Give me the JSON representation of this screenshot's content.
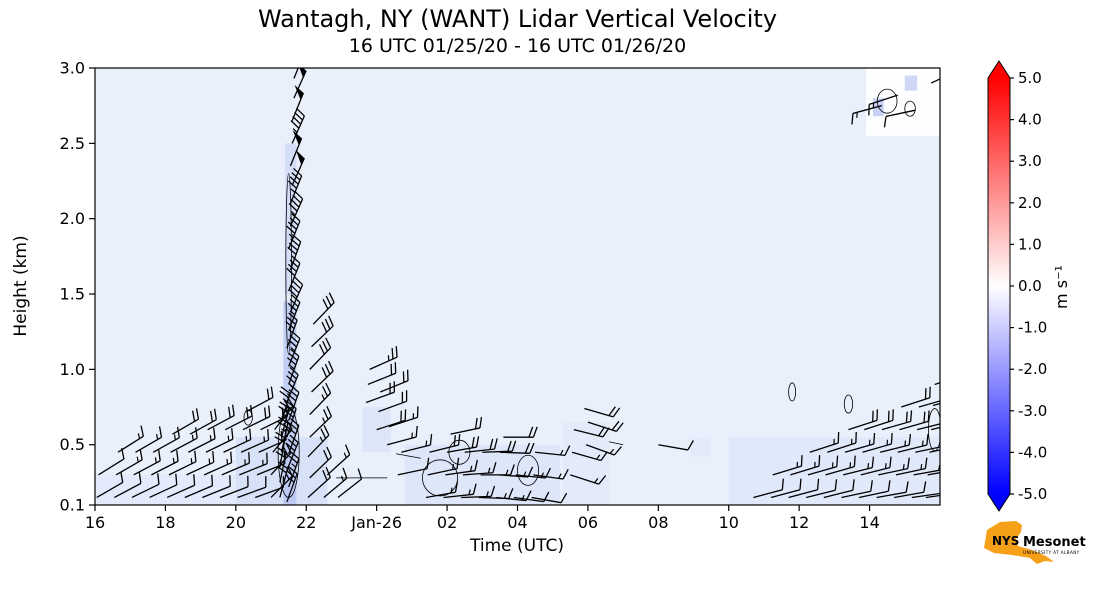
{
  "title": "Wantagh, NY (WANT) Lidar Vertical Velocity",
  "subtitle": "16 UTC 01/25/20 - 16 UTC 01/26/20",
  "chart_data": {
    "type": "heatmap",
    "title": "Wantagh, NY (WANT) Lidar Vertical Velocity",
    "subtitle": "16 UTC 01/25/20 - 16 UTC 01/26/20",
    "xlabel": "Time (UTC)",
    "ylabel": "Height (km)",
    "x_axis_hours_after_16utc": [
      0,
      24
    ],
    "ylim": [
      0.1,
      3.0
    ],
    "plot_bg": "#e9f0fb",
    "x_ticks": [
      {
        "t": 0,
        "label": "16"
      },
      {
        "t": 2,
        "label": "18"
      },
      {
        "t": 4,
        "label": "20"
      },
      {
        "t": 6,
        "label": "22"
      },
      {
        "t": 8,
        "label": "Jan-26"
      },
      {
        "t": 10,
        "label": "02"
      },
      {
        "t": 12,
        "label": "04"
      },
      {
        "t": 14,
        "label": "06"
      },
      {
        "t": 16,
        "label": "08"
      },
      {
        "t": 18,
        "label": "10"
      },
      {
        "t": 20,
        "label": "12"
      },
      {
        "t": 22,
        "label": "14"
      }
    ],
    "y_ticks": [
      {
        "h": 0.1,
        "label": "0.1"
      },
      {
        "h": 0.5,
        "label": "0.5"
      },
      {
        "h": 1.0,
        "label": "1.0"
      },
      {
        "h": 1.5,
        "label": "1.5"
      },
      {
        "h": 2.0,
        "label": "2.0"
      },
      {
        "h": 2.5,
        "label": "2.5"
      },
      {
        "h": 3.0,
        "label": "3.0"
      }
    ],
    "colorbar": {
      "label": "m s⁻¹",
      "min": -5.0,
      "max": 5.0,
      "ticks": [
        "5.0",
        "4.0",
        "3.0",
        "2.0",
        "1.0",
        "0.0",
        "-1.0",
        "-2.0",
        "-3.0",
        "-4.0",
        "-5.0"
      ],
      "color_max": "#ff0000",
      "color_mid": "#ffffff",
      "color_min": "#0000ff"
    },
    "shading": [
      [
        0.0,
        0.1,
        4.0,
        0.3,
        "#e0e9fb",
        0.8
      ],
      [
        4.0,
        0.1,
        6.6,
        0.55,
        "#ccd9f7",
        0.6
      ],
      [
        5.35,
        0.1,
        5.72,
        1.45,
        "#aebdf0",
        0.65
      ],
      [
        5.4,
        1.5,
        5.72,
        2.5,
        "#c5d0f5",
        0.55
      ],
      [
        7.6,
        0.45,
        8.4,
        0.75,
        "#d5dff8",
        0.6
      ],
      [
        8.8,
        0.1,
        13.2,
        0.5,
        "#d5dff8",
        0.55
      ],
      [
        13.3,
        0.1,
        14.6,
        0.65,
        "#dfe8fa",
        0.6
      ],
      [
        16.9,
        0.42,
        17.5,
        0.55,
        "#dfe8fa",
        0.7
      ],
      [
        18.0,
        0.1,
        24.0,
        0.55,
        "#dbe5fa",
        0.6
      ],
      [
        21.9,
        2.55,
        24.0,
        3.0,
        "#ffffff",
        0.9
      ],
      [
        22.1,
        2.68,
        22.4,
        2.8,
        "#b9c6f2",
        0.8
      ],
      [
        23.0,
        2.85,
        23.35,
        2.95,
        "#c3cef5",
        0.8
      ]
    ],
    "contour_ellipses": [
      [
        4.35,
        0.68,
        0.12,
        0.05
      ],
      [
        5.5,
        0.45,
        0.3,
        0.3
      ],
      [
        5.5,
        1.7,
        0.08,
        0.6
      ],
      [
        9.8,
        0.28,
        0.5,
        0.12
      ],
      [
        10.35,
        0.45,
        0.3,
        0.08
      ],
      [
        12.3,
        0.33,
        0.3,
        0.1
      ],
      [
        19.8,
        0.85,
        0.1,
        0.06
      ],
      [
        21.4,
        0.77,
        0.12,
        0.06
      ],
      [
        23.85,
        0.6,
        0.18,
        0.14
      ],
      [
        22.5,
        2.78,
        0.28,
        0.08
      ],
      [
        23.15,
        2.73,
        0.15,
        0.05
      ]
    ],
    "contour_segments": [
      [
        6.85,
        0.28,
        8.3,
        0.28
      ],
      [
        8.55,
        0.44,
        9.25,
        0.41
      ],
      [
        14.6,
        0.52,
        15.0,
        0.5
      ]
    ],
    "barb_format": "[hours_after_16UTC, height_km, staff_angle_deg_ccw_from_east, speed_knots]",
    "barbs": [
      [
        0.05,
        0.15,
        30,
        10
      ],
      [
        0.1,
        0.3,
        32,
        10
      ],
      [
        0.55,
        0.15,
        28,
        10
      ],
      [
        0.6,
        0.3,
        30,
        15
      ],
      [
        0.65,
        0.45,
        32,
        15
      ],
      [
        1.05,
        0.15,
        26,
        10
      ],
      [
        1.1,
        0.3,
        28,
        15
      ],
      [
        1.15,
        0.45,
        30,
        15
      ],
      [
        1.55,
        0.15,
        25,
        10
      ],
      [
        1.6,
        0.3,
        27,
        15
      ],
      [
        1.65,
        0.45,
        29,
        15
      ],
      [
        2.05,
        0.15,
        24,
        10
      ],
      [
        2.1,
        0.3,
        26,
        15
      ],
      [
        2.15,
        0.45,
        28,
        15
      ],
      [
        2.2,
        0.57,
        30,
        20
      ],
      [
        2.55,
        0.15,
        23,
        10
      ],
      [
        2.6,
        0.3,
        25,
        15
      ],
      [
        2.65,
        0.45,
        27,
        15
      ],
      [
        2.7,
        0.57,
        29,
        20
      ],
      [
        3.05,
        0.15,
        22,
        10
      ],
      [
        3.1,
        0.3,
        24,
        15
      ],
      [
        3.15,
        0.45,
        26,
        15
      ],
      [
        3.2,
        0.6,
        28,
        20
      ],
      [
        3.55,
        0.15,
        21,
        10
      ],
      [
        3.6,
        0.3,
        23,
        15
      ],
      [
        3.65,
        0.45,
        25,
        15
      ],
      [
        3.7,
        0.6,
        27,
        20
      ],
      [
        4.05,
        0.15,
        20,
        10
      ],
      [
        4.1,
        0.3,
        22,
        15
      ],
      [
        4.15,
        0.45,
        24,
        15
      ],
      [
        4.2,
        0.6,
        26,
        20
      ],
      [
        4.3,
        0.72,
        28,
        20
      ],
      [
        4.55,
        0.15,
        20,
        10
      ],
      [
        4.6,
        0.3,
        22,
        15
      ],
      [
        4.65,
        0.45,
        24,
        20
      ],
      [
        4.7,
        0.6,
        26,
        20
      ],
      [
        5.0,
        0.15,
        45,
        15
      ],
      [
        5.0,
        0.3,
        48,
        20
      ],
      [
        5.05,
        0.45,
        50,
        20
      ],
      [
        5.1,
        0.6,
        52,
        20
      ],
      [
        5.25,
        0.15,
        75,
        20
      ],
      [
        5.25,
        0.25,
        78,
        20
      ],
      [
        5.25,
        0.35,
        80,
        20
      ],
      [
        5.3,
        0.45,
        78,
        25
      ],
      [
        5.3,
        0.55,
        76,
        25
      ],
      [
        5.3,
        0.65,
        74,
        25
      ],
      [
        5.45,
        0.12,
        70,
        25
      ],
      [
        5.5,
        0.22,
        70,
        25
      ],
      [
        5.45,
        0.33,
        68,
        30
      ],
      [
        5.5,
        0.44,
        70,
        30
      ],
      [
        5.45,
        0.55,
        72,
        30
      ],
      [
        5.5,
        0.66,
        70,
        30
      ],
      [
        5.45,
        0.78,
        68,
        35
      ],
      [
        5.5,
        0.9,
        70,
        35
      ],
      [
        5.5,
        1.02,
        68,
        35
      ],
      [
        5.45,
        1.14,
        70,
        35
      ],
      [
        5.5,
        1.26,
        68,
        35
      ],
      [
        5.55,
        1.38,
        66,
        40
      ],
      [
        5.5,
        1.52,
        68,
        40
      ],
      [
        5.55,
        1.66,
        70,
        40
      ],
      [
        5.5,
        1.8,
        68,
        45
      ],
      [
        5.55,
        1.95,
        66,
        45
      ],
      [
        5.55,
        2.1,
        68,
        45
      ],
      [
        5.6,
        2.22,
        66,
        50
      ],
      [
        5.55,
        2.35,
        68,
        50
      ],
      [
        5.6,
        2.5,
        66,
        45
      ],
      [
        5.6,
        2.65,
        68,
        50
      ],
      [
        5.65,
        2.8,
        66,
        50
      ],
      [
        5.65,
        2.93,
        68,
        50
      ],
      [
        6.05,
        0.15,
        42,
        20
      ],
      [
        6.1,
        0.28,
        44,
        20
      ],
      [
        6.05,
        0.42,
        46,
        25
      ],
      [
        6.1,
        0.55,
        44,
        25
      ],
      [
        6.1,
        0.7,
        46,
        25
      ],
      [
        6.15,
        0.85,
        44,
        30
      ],
      [
        6.1,
        1.0,
        46,
        30
      ],
      [
        6.15,
        1.15,
        44,
        30
      ],
      [
        6.2,
        1.3,
        46,
        30
      ],
      [
        6.5,
        0.15,
        40,
        15
      ],
      [
        6.6,
        0.3,
        42,
        15
      ],
      [
        6.9,
        0.15,
        38,
        10
      ],
      [
        7.7,
        0.78,
        20,
        20
      ],
      [
        7.75,
        0.9,
        22,
        20
      ],
      [
        7.8,
        1.0,
        24,
        25
      ],
      [
        8.0,
        0.6,
        18,
        20
      ],
      [
        8.05,
        0.72,
        20,
        20
      ],
      [
        8.1,
        0.85,
        22,
        20
      ],
      [
        8.3,
        0.5,
        15,
        15
      ],
      [
        8.35,
        0.62,
        18,
        15
      ],
      [
        8.6,
        0.3,
        12,
        10
      ],
      [
        8.7,
        0.45,
        14,
        15
      ],
      [
        9.4,
        0.15,
        10,
        15
      ],
      [
        9.45,
        0.3,
        12,
        15
      ],
      [
        9.5,
        0.45,
        14,
        20
      ],
      [
        9.9,
        0.15,
        6,
        15
      ],
      [
        9.95,
        0.3,
        8,
        15
      ],
      [
        10.0,
        0.45,
        10,
        20
      ],
      [
        10.1,
        0.57,
        12,
        20
      ],
      [
        10.4,
        0.15,
        2,
        15
      ],
      [
        10.45,
        0.3,
        4,
        15
      ],
      [
        10.5,
        0.45,
        6,
        20
      ],
      [
        10.9,
        0.15,
        -2,
        15
      ],
      [
        10.95,
        0.3,
        0,
        15
      ],
      [
        11.0,
        0.45,
        2,
        20
      ],
      [
        11.4,
        0.15,
        -6,
        15
      ],
      [
        11.45,
        0.3,
        -4,
        15
      ],
      [
        11.5,
        0.45,
        -2,
        20
      ],
      [
        11.6,
        0.55,
        0,
        20
      ],
      [
        11.9,
        0.15,
        -8,
        10
      ],
      [
        11.95,
        0.3,
        -6,
        15
      ],
      [
        12.4,
        0.15,
        -10,
        10
      ],
      [
        12.45,
        0.3,
        -8,
        15
      ],
      [
        12.5,
        0.45,
        -6,
        15
      ],
      [
        13.5,
        0.3,
        -18,
        15
      ],
      [
        13.55,
        0.45,
        -16,
        15
      ],
      [
        13.6,
        0.6,
        -14,
        20
      ],
      [
        13.95,
        0.5,
        -20,
        15
      ],
      [
        14.0,
        0.65,
        -18,
        20
      ],
      [
        13.9,
        0.74,
        -16,
        20
      ],
      [
        16.0,
        0.5,
        -10,
        10
      ],
      [
        18.7,
        0.15,
        15,
        10
      ],
      [
        19.2,
        0.15,
        15,
        10
      ],
      [
        19.25,
        0.3,
        17,
        15
      ],
      [
        19.7,
        0.15,
        15,
        10
      ],
      [
        19.75,
        0.3,
        17,
        15
      ],
      [
        20.2,
        0.15,
        14,
        10
      ],
      [
        20.25,
        0.3,
        16,
        15
      ],
      [
        20.3,
        0.45,
        18,
        15
      ],
      [
        20.7,
        0.15,
        14,
        10
      ],
      [
        20.75,
        0.3,
        16,
        15
      ],
      [
        20.8,
        0.45,
        18,
        15
      ],
      [
        21.2,
        0.15,
        12,
        10
      ],
      [
        21.25,
        0.3,
        14,
        15
      ],
      [
        21.3,
        0.45,
        16,
        15
      ],
      [
        21.4,
        0.6,
        18,
        20
      ],
      [
        21.7,
        0.15,
        12,
        10
      ],
      [
        21.75,
        0.3,
        14,
        15
      ],
      [
        21.8,
        0.45,
        16,
        15
      ],
      [
        21.85,
        0.6,
        18,
        20
      ],
      [
        22.2,
        0.15,
        10,
        10
      ],
      [
        22.25,
        0.3,
        12,
        15
      ],
      [
        22.3,
        0.45,
        14,
        15
      ],
      [
        22.35,
        0.6,
        16,
        20
      ],
      [
        22.7,
        0.15,
        10,
        10
      ],
      [
        22.75,
        0.3,
        12,
        15
      ],
      [
        22.8,
        0.45,
        14,
        15
      ],
      [
        22.85,
        0.6,
        16,
        20
      ],
      [
        22.9,
        0.75,
        18,
        20
      ],
      [
        23.2,
        0.15,
        8,
        10
      ],
      [
        23.25,
        0.3,
        10,
        15
      ],
      [
        23.3,
        0.45,
        12,
        15
      ],
      [
        23.35,
        0.6,
        14,
        20
      ],
      [
        23.4,
        0.75,
        16,
        20
      ],
      [
        23.6,
        0.15,
        8,
        10
      ],
      [
        23.65,
        0.3,
        10,
        15
      ],
      [
        23.7,
        0.45,
        12,
        15
      ],
      [
        23.75,
        0.6,
        14,
        20
      ],
      [
        23.8,
        0.76,
        16,
        20
      ],
      [
        23.85,
        0.9,
        18,
        25
      ],
      [
        22.35,
        2.75,
        195,
        15
      ],
      [
        22.8,
        2.82,
        198,
        15
      ],
      [
        23.3,
        2.72,
        192,
        10
      ],
      [
        23.75,
        2.9,
        25,
        15
      ]
    ]
  },
  "logo": {
    "org": "NYS",
    "name": "Mesonet",
    "tagline": "UNIVERSITY AT ALBANY",
    "orange": "#f6a01a",
    "navy": "#1e2d78"
  }
}
